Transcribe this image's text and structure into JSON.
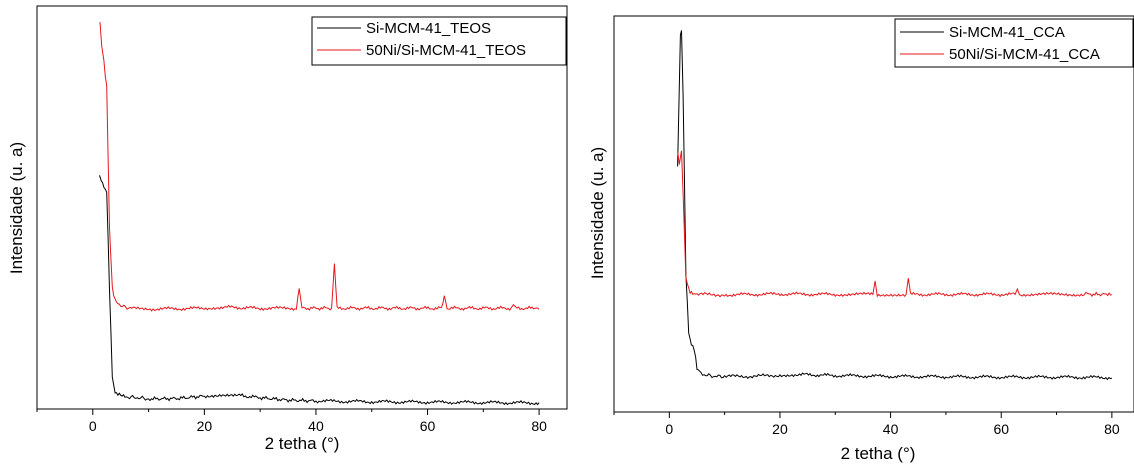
{
  "chart_data": [
    {
      "type": "line",
      "title": "",
      "xlabel": "2 tetha (°)",
      "ylabel": "Intensidade (u. a)",
      "xlim": [
        -10,
        85
      ],
      "yticks_shown": false,
      "x_ticks": [
        0,
        20,
        40,
        60,
        80
      ],
      "grid": false,
      "legend_position": "top-right",
      "series": [
        {
          "name": "Si-MCM-41_TEOS",
          "color": "#000000",
          "points": [
            [
              1.2,
              0.58
            ],
            [
              1.5,
              0.57
            ],
            [
              2.0,
              0.55
            ],
            [
              2.5,
              0.54
            ],
            [
              3.0,
              0.3
            ],
            [
              3.5,
              0.08
            ],
            [
              4.0,
              0.04
            ],
            [
              5,
              0.035
            ],
            [
              6,
              0.03
            ],
            [
              8,
              0.028
            ],
            [
              10,
              0.025
            ],
            [
              15,
              0.026
            ],
            [
              20,
              0.032
            ],
            [
              23,
              0.036
            ],
            [
              26,
              0.034
            ],
            [
              30,
              0.028
            ],
            [
              35,
              0.022
            ],
            [
              40,
              0.02
            ],
            [
              50,
              0.018
            ],
            [
              60,
              0.017
            ],
            [
              70,
              0.016
            ],
            [
              80,
              0.015
            ]
          ]
        },
        {
          "name": "50Ni/Si-MCM-41_TEOS",
          "color": "#e8161b",
          "points": [
            [
              1.3,
              0.96
            ],
            [
              1.6,
              0.9
            ],
            [
              2.0,
              0.86
            ],
            [
              2.5,
              0.8
            ],
            [
              3.0,
              0.45
            ],
            [
              3.5,
              0.3
            ],
            [
              4.0,
              0.27
            ],
            [
              5,
              0.255
            ],
            [
              7,
              0.25
            ],
            [
              10,
              0.248
            ],
            [
              20,
              0.25
            ],
            [
              23,
              0.253
            ],
            [
              30,
              0.25
            ],
            [
              36.5,
              0.25
            ],
            [
              37.0,
              0.3
            ],
            [
              37.5,
              0.25
            ],
            [
              42.8,
              0.25
            ],
            [
              43.3,
              0.36
            ],
            [
              43.8,
              0.25
            ],
            [
              62.5,
              0.25
            ],
            [
              63.0,
              0.28
            ],
            [
              63.5,
              0.25
            ],
            [
              75,
              0.25
            ],
            [
              75.4,
              0.26
            ],
            [
              75.8,
              0.25
            ],
            [
              79,
              0.25
            ],
            [
              80,
              0.25
            ]
          ]
        }
      ]
    },
    {
      "type": "line",
      "title": "",
      "xlabel": "2 tetha (°)",
      "ylabel": "Intensidade (u. a)",
      "xlim": [
        -10,
        84
      ],
      "yticks_shown": false,
      "x_ticks": [
        0,
        20,
        40,
        60,
        80
      ],
      "grid": false,
      "legend_position": "top-right",
      "series": [
        {
          "name": "Si-MCM-41_CCA",
          "color": "#000000",
          "points": [
            [
              1.5,
              0.62
            ],
            [
              2.0,
              0.95
            ],
            [
              2.2,
              0.96
            ],
            [
              2.5,
              0.8
            ],
            [
              3.0,
              0.35
            ],
            [
              3.5,
              0.2
            ],
            [
              4.0,
              0.17
            ],
            [
              4.5,
              0.16
            ],
            [
              5,
              0.11
            ],
            [
              6,
              0.095
            ],
            [
              8,
              0.09
            ],
            [
              10,
              0.09
            ],
            [
              15,
              0.09
            ],
            [
              20,
              0.093
            ],
            [
              23,
              0.095
            ],
            [
              30,
              0.092
            ],
            [
              40,
              0.09
            ],
            [
              50,
              0.089
            ],
            [
              60,
              0.088
            ],
            [
              70,
              0.088
            ],
            [
              80,
              0.087
            ]
          ]
        },
        {
          "name": "50Ni/Si-MCM-41_CCA",
          "color": "#e8161b",
          "points": [
            [
              1.5,
              0.66
            ],
            [
              1.8,
              0.62
            ],
            [
              2.2,
              0.66
            ],
            [
              2.5,
              0.55
            ],
            [
              3.0,
              0.34
            ],
            [
              3.5,
              0.31
            ],
            [
              4.0,
              0.3
            ],
            [
              5,
              0.297
            ],
            [
              10,
              0.296
            ],
            [
              20,
              0.298
            ],
            [
              30,
              0.297
            ],
            [
              36.8,
              0.297
            ],
            [
              37.2,
              0.33
            ],
            [
              37.6,
              0.297
            ],
            [
              42.8,
              0.297
            ],
            [
              43.2,
              0.34
            ],
            [
              43.6,
              0.297
            ],
            [
              62.5,
              0.297
            ],
            [
              62.9,
              0.31
            ],
            [
              63.3,
              0.297
            ],
            [
              75,
              0.297
            ],
            [
              75.3,
              0.3
            ],
            [
              75.6,
              0.297
            ],
            [
              79,
              0.297
            ],
            [
              80,
              0.297
            ]
          ]
        }
      ]
    }
  ]
}
